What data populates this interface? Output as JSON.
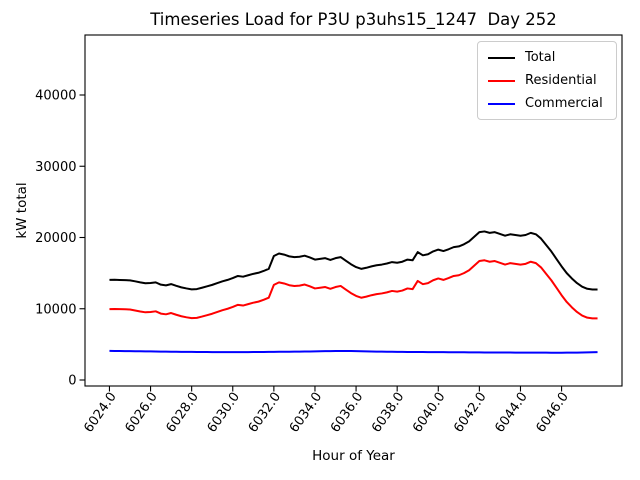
{
  "title": "Timeseries Load for P3U p3uhs15_1247  Day 252",
  "chart_data": {
    "type": "line",
    "title": "Timeseries Load for P3U p3uhs15_1247  Day 252",
    "xlabel": "Hour of Year",
    "ylabel": "kW total",
    "xlim": [
      6022.81,
      6048.94
    ],
    "ylim": [
      -842,
      48421
    ],
    "grid": false,
    "legend_position": "upper right",
    "xticks": [
      6024,
      6026,
      6028,
      6030,
      6032,
      6034,
      6036,
      6038,
      6040,
      6042,
      6044,
      6046
    ],
    "xtick_labels": [
      "6024.0",
      "6026.0",
      "6028.0",
      "6030.0",
      "6032.0",
      "6034.0",
      "6036.0",
      "6038.0",
      "6040.0",
      "6042.0",
      "6044.0",
      "6046.0"
    ],
    "yticks": [
      0,
      10000,
      20000,
      30000,
      40000
    ],
    "ytick_labels": [
      "0",
      "10000",
      "20000",
      "30000",
      "40000"
    ],
    "x": [
      6024.0,
      6024.25,
      6024.5,
      6024.75,
      6025.0,
      6025.25,
      6025.5,
      6025.75,
      6026.0,
      6026.25,
      6026.5,
      6026.75,
      6027.0,
      6027.25,
      6027.5,
      6027.75,
      6028.0,
      6028.25,
      6028.5,
      6028.75,
      6029.0,
      6029.25,
      6029.5,
      6029.75,
      6030.0,
      6030.25,
      6030.5,
      6030.75,
      6031.0,
      6031.25,
      6031.5,
      6031.75,
      6032.0,
      6032.25,
      6032.5,
      6032.75,
      6033.0,
      6033.25,
      6033.5,
      6033.75,
      6034.0,
      6034.25,
      6034.5,
      6034.75,
      6035.0,
      6035.25,
      6035.5,
      6035.75,
      6036.0,
      6036.25,
      6036.5,
      6036.75,
      6037.0,
      6037.25,
      6037.5,
      6037.75,
      6038.0,
      6038.25,
      6038.5,
      6038.75,
      6039.0,
      6039.25,
      6039.5,
      6039.75,
      6040.0,
      6040.25,
      6040.5,
      6040.75,
      6041.0,
      6041.25,
      6041.5,
      6041.75,
      6042.0,
      6042.25,
      6042.5,
      6042.75,
      6043.0,
      6043.25,
      6043.5,
      6043.75,
      6044.0,
      6044.25,
      6044.5,
      6044.75,
      6045.0,
      6045.25,
      6045.5,
      6045.75,
      6046.0,
      6046.25,
      6046.5,
      6046.75,
      6047.0,
      6047.25,
      6047.5,
      6047.75
    ],
    "series": [
      {
        "name": "Total",
        "color": "#000000",
        "values": [
          14050,
          14070,
          14040,
          14020,
          13980,
          13850,
          13700,
          13580,
          13620,
          13700,
          13380,
          13280,
          13460,
          13220,
          13000,
          12850,
          12720,
          12760,
          12950,
          13150,
          13350,
          13600,
          13850,
          14050,
          14300,
          14600,
          14500,
          14700,
          14900,
          15050,
          15300,
          15600,
          17400,
          17750,
          17600,
          17350,
          17250,
          17300,
          17450,
          17200,
          16900,
          17000,
          17100,
          16850,
          17100,
          17250,
          16750,
          16250,
          15850,
          15600,
          15750,
          15950,
          16100,
          16200,
          16350,
          16550,
          16450,
          16600,
          16900,
          16800,
          17950,
          17500,
          17650,
          18050,
          18300,
          18100,
          18350,
          18650,
          18750,
          19050,
          19450,
          20100,
          20750,
          20850,
          20650,
          20750,
          20500,
          20250,
          20450,
          20350,
          20250,
          20350,
          20650,
          20450,
          19850,
          18950,
          18050,
          17000,
          15950,
          15000,
          14250,
          13600,
          13100,
          12800,
          12700,
          12700
        ]
      },
      {
        "name": "Residential",
        "color": "#ff0000",
        "values": [
          9950,
          9970,
          9950,
          9930,
          9890,
          9760,
          9620,
          9500,
          9550,
          9640,
          9320,
          9220,
          9400,
          9160,
          8950,
          8800,
          8680,
          8720,
          8900,
          9100,
          9300,
          9550,
          9800,
          10000,
          10250,
          10550,
          10450,
          10650,
          10850,
          11000,
          11250,
          11550,
          13350,
          13700,
          13550,
          13300,
          13200,
          13250,
          13400,
          13150,
          12850,
          12950,
          13050,
          12800,
          13050,
          13200,
          12700,
          12200,
          11800,
          11550,
          11700,
          11900,
          12050,
          12150,
          12300,
          12500,
          12400,
          12550,
          12850,
          12750,
          13900,
          13450,
          13600,
          14000,
          14250,
          14050,
          14300,
          14600,
          14700,
          15000,
          15400,
          16050,
          16700,
          16800,
          16600,
          16700,
          16450,
          16200,
          16400,
          16300,
          16200,
          16300,
          16600,
          16400,
          15800,
          14900,
          14000,
          12950,
          11900,
          10950,
          10200,
          9550,
          9050,
          8750,
          8650,
          8650
        ]
      },
      {
        "name": "Commercial",
        "color": "#0000ff",
        "values": [
          4080,
          4075,
          4070,
          4060,
          4050,
          4040,
          4030,
          4020,
          4010,
          4000,
          3990,
          3980,
          3970,
          3960,
          3955,
          3948,
          3940,
          3935,
          3930,
          3925,
          3920,
          3916,
          3914,
          3912,
          3910,
          3912,
          3914,
          3918,
          3924,
          3930,
          3936,
          3942,
          3950,
          3958,
          3964,
          3970,
          3978,
          3988,
          3998,
          4008,
          4018,
          4032,
          4046,
          4058,
          4068,
          4078,
          4074,
          4068,
          4058,
          4040,
          4020,
          4000,
          3988,
          3978,
          3968,
          3958,
          3950,
          3944,
          3938,
          3932,
          3928,
          3924,
          3920,
          3916,
          3910,
          3906,
          3902,
          3898,
          3892,
          3888,
          3882,
          3876,
          3870,
          3866,
          3862,
          3858,
          3856,
          3854,
          3852,
          3850,
          3846,
          3844,
          3842,
          3840,
          3836,
          3834,
          3832,
          3830,
          3830,
          3834,
          3840,
          3850,
          3862,
          3880,
          3900,
          3920
        ]
      }
    ]
  }
}
